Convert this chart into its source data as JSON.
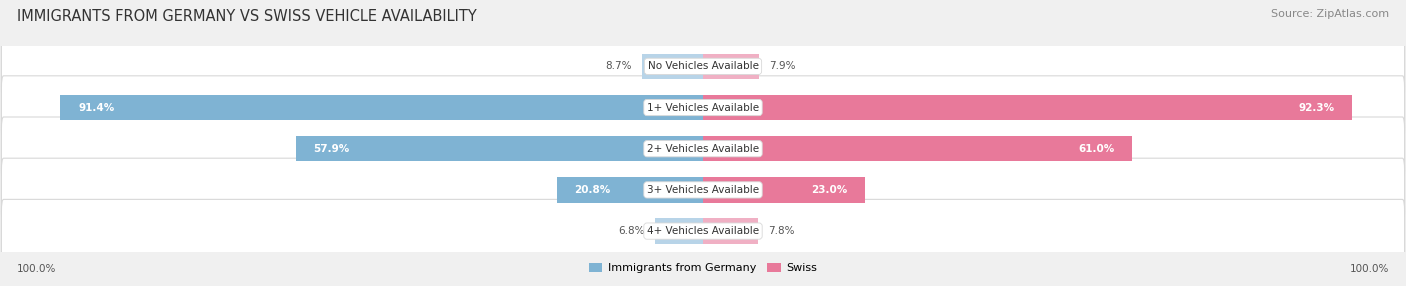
{
  "title": "IMMIGRANTS FROM GERMANY VS SWISS VEHICLE AVAILABILITY",
  "source": "Source: ZipAtlas.com",
  "categories": [
    "No Vehicles Available",
    "1+ Vehicles Available",
    "2+ Vehicles Available",
    "3+ Vehicles Available",
    "4+ Vehicles Available"
  ],
  "germany_values": [
    8.7,
    91.4,
    57.9,
    20.8,
    6.8
  ],
  "swiss_values": [
    7.9,
    92.3,
    61.0,
    23.0,
    7.8
  ],
  "germany_color": "#7fb3d3",
  "swiss_color": "#e8799a",
  "germany_color_light": "#b8d4e8",
  "swiss_color_light": "#f0b0c4",
  "bg_color": "#f0f0f0",
  "row_bg_color": "#f5f5f5",
  "row_border_color": "#d8d8d8",
  "max_value": 100.0,
  "legend_germany": "Immigrants from Germany",
  "legend_swiss": "Swiss",
  "title_fontsize": 10.5,
  "source_fontsize": 8,
  "bar_label_fontsize": 7.5,
  "category_fontsize": 7.5,
  "legend_fontsize": 8,
  "axis_label_fontsize": 7.5
}
